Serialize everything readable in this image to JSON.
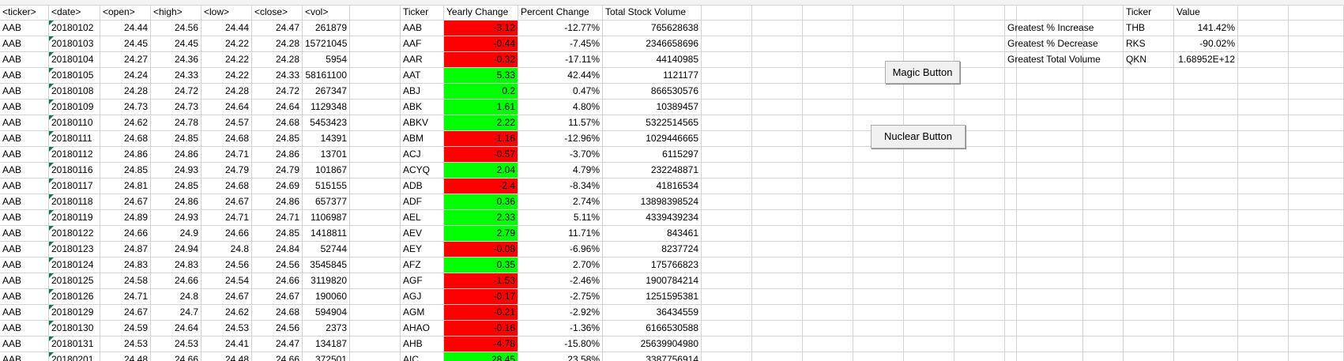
{
  "raw_headers": [
    "<ticker>",
    "<date>",
    "<open>",
    "<high>",
    "<low>",
    "<close>",
    "<vol>"
  ],
  "raw_rows": [
    [
      "AAB",
      "20180102",
      "24.44",
      "24.56",
      "24.44",
      "24.47",
      "261879"
    ],
    [
      "AAB",
      "20180103",
      "24.45",
      "24.45",
      "24.22",
      "24.28",
      "15721045"
    ],
    [
      "AAB",
      "20180104",
      "24.27",
      "24.36",
      "24.22",
      "24.28",
      "5954"
    ],
    [
      "AAB",
      "20180105",
      "24.24",
      "24.33",
      "24.22",
      "24.33",
      "58161100"
    ],
    [
      "AAB",
      "20180108",
      "24.28",
      "24.72",
      "24.28",
      "24.72",
      "267347"
    ],
    [
      "AAB",
      "20180109",
      "24.73",
      "24.73",
      "24.64",
      "24.64",
      "1129348"
    ],
    [
      "AAB",
      "20180110",
      "24.62",
      "24.78",
      "24.57",
      "24.68",
      "5453423"
    ],
    [
      "AAB",
      "20180111",
      "24.68",
      "24.85",
      "24.68",
      "24.85",
      "14391"
    ],
    [
      "AAB",
      "20180112",
      "24.86",
      "24.86",
      "24.71",
      "24.86",
      "13701"
    ],
    [
      "AAB",
      "20180116",
      "24.85",
      "24.93",
      "24.79",
      "24.79",
      "101867"
    ],
    [
      "AAB",
      "20180117",
      "24.81",
      "24.85",
      "24.68",
      "24.69",
      "515155"
    ],
    [
      "AAB",
      "20180118",
      "24.67",
      "24.86",
      "24.67",
      "24.86",
      "657377"
    ],
    [
      "AAB",
      "20180119",
      "24.89",
      "24.93",
      "24.71",
      "24.71",
      "1106987"
    ],
    [
      "AAB",
      "20180122",
      "24.66",
      "24.9",
      "24.66",
      "24.85",
      "1418811"
    ],
    [
      "AAB",
      "20180123",
      "24.87",
      "24.94",
      "24.8",
      "24.84",
      "52744"
    ],
    [
      "AAB",
      "20180124",
      "24.83",
      "24.83",
      "24.56",
      "24.56",
      "3545845"
    ],
    [
      "AAB",
      "20180125",
      "24.58",
      "24.66",
      "24.54",
      "24.66",
      "3119820"
    ],
    [
      "AAB",
      "20180126",
      "24.71",
      "24.8",
      "24.67",
      "24.67",
      "190060"
    ],
    [
      "AAB",
      "20180129",
      "24.67",
      "24.7",
      "24.62",
      "24.68",
      "594904"
    ],
    [
      "AAB",
      "20180130",
      "24.59",
      "24.64",
      "24.53",
      "24.56",
      "2373"
    ],
    [
      "AAB",
      "20180131",
      "24.53",
      "24.53",
      "24.41",
      "24.47",
      "134187"
    ],
    [
      "AAB",
      "20180201",
      "24.48",
      "24.66",
      "24.48",
      "24.66",
      "372501"
    ]
  ],
  "summary_headers": [
    "Ticker",
    "Yearly Change",
    "Percent Change",
    "Total Stock Volume"
  ],
  "summary_rows": [
    {
      "ticker": "AAB",
      "change": "-3.12",
      "pct": "-12.77%",
      "volume": "765628638",
      "status": "negative"
    },
    {
      "ticker": "AAF",
      "change": "-0.44",
      "pct": "-7.45%",
      "volume": "2346658696",
      "status": "negative"
    },
    {
      "ticker": "AAR",
      "change": "-0.32",
      "pct": "-17.11%",
      "volume": "44140985",
      "status": "negative"
    },
    {
      "ticker": "AAT",
      "change": "5.33",
      "pct": "42.44%",
      "volume": "1121177",
      "status": "positive"
    },
    {
      "ticker": "ABJ",
      "change": "0.2",
      "pct": "0.47%",
      "volume": "866530576",
      "status": "positive"
    },
    {
      "ticker": "ABK",
      "change": "1.61",
      "pct": "4.80%",
      "volume": "10389457",
      "status": "positive"
    },
    {
      "ticker": "ABKV",
      "change": "2.22",
      "pct": "11.57%",
      "volume": "5322514565",
      "status": "positive"
    },
    {
      "ticker": "ABM",
      "change": "-1.16",
      "pct": "-12.96%",
      "volume": "1029446665",
      "status": "negative"
    },
    {
      "ticker": "ACJ",
      "change": "-0.57",
      "pct": "-3.70%",
      "volume": "6115297",
      "status": "negative"
    },
    {
      "ticker": "ACYQ",
      "change": "2.04",
      "pct": "4.79%",
      "volume": "232248871",
      "status": "positive"
    },
    {
      "ticker": "ADB",
      "change": "-2.4",
      "pct": "-8.34%",
      "volume": "41816534",
      "status": "negative"
    },
    {
      "ticker": "ADF",
      "change": "0.36",
      "pct": "2.74%",
      "volume": "13898398524",
      "status": "positive"
    },
    {
      "ticker": "AEL",
      "change": "2.33",
      "pct": "5.11%",
      "volume": "4339439234",
      "status": "positive"
    },
    {
      "ticker": "AEV",
      "change": "2.79",
      "pct": "11.71%",
      "volume": "843461",
      "status": "positive"
    },
    {
      "ticker": "AEY",
      "change": "-0.08",
      "pct": "-6.96%",
      "volume": "8237724",
      "status": "negative"
    },
    {
      "ticker": "AFZ",
      "change": "0.35",
      "pct": "2.70%",
      "volume": "175766823",
      "status": "positive"
    },
    {
      "ticker": "AGF",
      "change": "-1.53",
      "pct": "-2.46%",
      "volume": "1900784214",
      "status": "negative"
    },
    {
      "ticker": "AGJ",
      "change": "-0.17",
      "pct": "-2.75%",
      "volume": "1251595381",
      "status": "negative"
    },
    {
      "ticker": "AGM",
      "change": "-0.21",
      "pct": "-2.92%",
      "volume": "36434559",
      "status": "negative"
    },
    {
      "ticker": "AHAO",
      "change": "-0.16",
      "pct": "-1.36%",
      "volume": "6166530588",
      "status": "negative"
    },
    {
      "ticker": "AHB",
      "change": "-4.78",
      "pct": "-15.80%",
      "volume": "25639904980",
      "status": "negative"
    },
    {
      "ticker": "AIC",
      "change": "28.45",
      "pct": "23.58%",
      "volume": "3387756914",
      "status": "positive"
    }
  ],
  "greatest": {
    "headers": [
      "Ticker",
      "Value"
    ],
    "rows": [
      {
        "label": "Greatest % Increase",
        "ticker": "THB",
        "value": "141.42%"
      },
      {
        "label": "Greatest % Decrease",
        "ticker": "RKS",
        "value": "-90.02%"
      },
      {
        "label": "Greatest Total Volume",
        "ticker": "QKN",
        "value": "1.68952E+12"
      }
    ]
  },
  "buttons": {
    "magic": "Magic Button",
    "nuclear": "Nuclear Button"
  },
  "colors": {
    "negative": "#ff0000",
    "positive": "#00ff00",
    "grid": "#d4d4d4",
    "date_flag": "#107c41"
  }
}
